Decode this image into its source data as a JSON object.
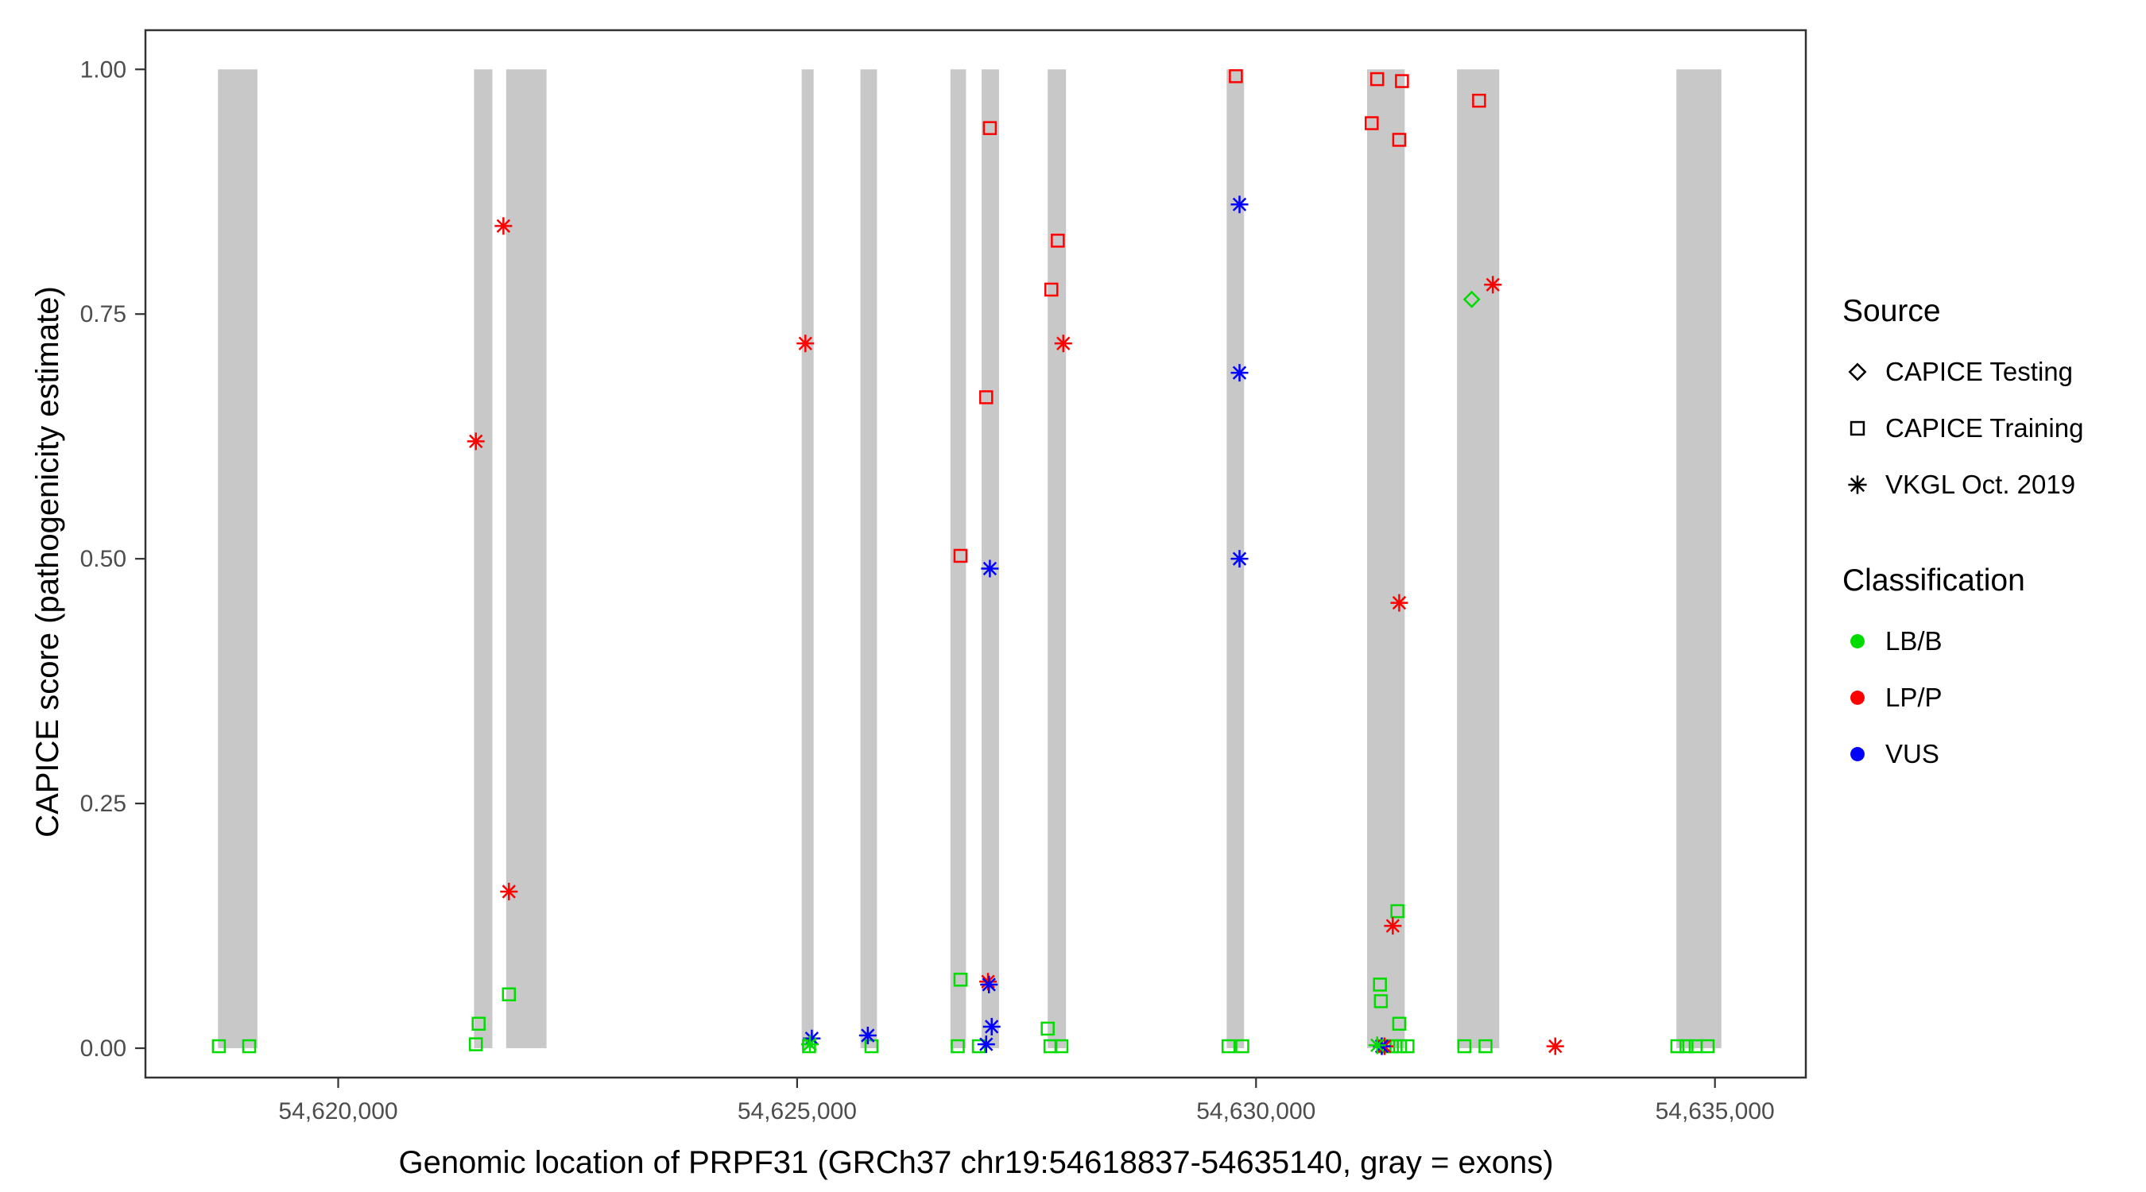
{
  "figure": {
    "background": "#FFFFFF"
  },
  "legend": {
    "source": {
      "title": "Source",
      "items": [
        {
          "label": "CAPICE Testing",
          "shape": "diamond"
        },
        {
          "label": "CAPICE Training",
          "shape": "square"
        },
        {
          "label": "VKGL Oct. 2019",
          "shape": "asterisk"
        }
      ]
    },
    "classification": {
      "title": "Classification",
      "items": [
        {
          "label": "LB/B",
          "color": "#00DB00"
        },
        {
          "label": "LP/P",
          "color": "#FF0000"
        },
        {
          "label": "VUS",
          "color": "#0000FF"
        }
      ]
    }
  },
  "chart_data": {
    "type": "scatter",
    "title": "",
    "xlabel": "Genomic location of PRPF31 (GRCh37 chr19:54618837-54635140, gray = exons)",
    "ylabel": "CAPICE score (pathogenicity estimate)",
    "x_domain": [
      54617900,
      54635990
    ],
    "y_domain": [
      -0.03,
      1.04
    ],
    "x_tick_values": [
      54620000,
      54625000,
      54630000,
      54635000
    ],
    "x_tick_labels": [
      "54,620,000",
      "54,625,000",
      "54,630,000",
      "54,635,000"
    ],
    "y_tick_values": [
      0,
      0.25,
      0.5,
      0.75,
      1
    ],
    "y_tick_labels": [
      "0.00",
      "0.25",
      "0.50",
      "0.75",
      "1.00"
    ],
    "grid": false,
    "legend_position": "right",
    "exon_color": "#C8C8C8",
    "exons": [
      [
        54618690,
        54619120
      ],
      [
        54621480,
        54621680
      ],
      [
        54621830,
        54622270
      ],
      [
        54625050,
        54625180
      ],
      [
        54625690,
        54625870
      ],
      [
        54626670,
        54626840
      ],
      [
        54627010,
        54627200
      ],
      [
        54627730,
        54627930
      ],
      [
        54629680,
        54629870
      ],
      [
        54631210,
        54631620
      ],
      [
        54632190,
        54632650
      ],
      [
        54634580,
        54635070
      ]
    ],
    "series": [
      {
        "name": "CAPICE Training LB/B",
        "source": "CAPICE Training",
        "classification": "LB/B",
        "shape": "square",
        "color": "#00DB00",
        "points": [
          [
            54618700,
            0.002
          ],
          [
            54619030,
            0.002
          ],
          [
            54621500,
            0.004
          ],
          [
            54621530,
            0.025
          ],
          [
            54621860,
            0.055
          ],
          [
            54625130,
            0.002
          ],
          [
            54625810,
            0.002
          ],
          [
            54626780,
            0.07
          ],
          [
            54626750,
            0.002
          ],
          [
            54626980,
            0.002
          ],
          [
            54627730,
            0.02
          ],
          [
            54627760,
            0.002
          ],
          [
            54627880,
            0.002
          ],
          [
            54629700,
            0.002
          ],
          [
            54629850,
            0.002
          ],
          [
            54631350,
            0.065
          ],
          [
            54631360,
            0.048
          ],
          [
            54631540,
            0.14
          ],
          [
            54631560,
            0.025
          ],
          [
            54631400,
            0.002
          ],
          [
            54631480,
            0.002
          ],
          [
            54631570,
            0.002
          ],
          [
            54631650,
            0.002
          ],
          [
            54632270,
            0.002
          ],
          [
            54632500,
            0.002
          ],
          [
            54634590,
            0.002
          ],
          [
            54634690,
            0.002
          ],
          [
            54634790,
            0.002
          ],
          [
            54634920,
            0.002
          ]
        ]
      },
      {
        "name": "CAPICE Training LP/P",
        "source": "CAPICE Training",
        "classification": "LP/P",
        "shape": "square",
        "color": "#FF0000",
        "points": [
          [
            54629780,
            0.993
          ],
          [
            54631320,
            0.99
          ],
          [
            54631590,
            0.988
          ],
          [
            54631260,
            0.945
          ],
          [
            54627100,
            0.94
          ],
          [
            54631560,
            0.928
          ],
          [
            54632430,
            0.968
          ],
          [
            54627840,
            0.825
          ],
          [
            54627770,
            0.775
          ],
          [
            54627060,
            0.665
          ],
          [
            54626780,
            0.503
          ]
        ]
      },
      {
        "name": "CAPICE Testing LB/B",
        "source": "CAPICE Testing",
        "classification": "LB/B",
        "shape": "diamond",
        "color": "#00DB00",
        "points": [
          [
            54632350,
            0.765
          ]
        ]
      },
      {
        "name": "VKGL Oct. 2019 LP/P",
        "source": "VKGL Oct. 2019",
        "classification": "LP/P",
        "shape": "asterisk",
        "color": "#FF0000",
        "points": [
          [
            54621800,
            0.84
          ],
          [
            54621500,
            0.62
          ],
          [
            54621860,
            0.16
          ],
          [
            54625090,
            0.72
          ],
          [
            54627900,
            0.72
          ],
          [
            54627080,
            0.068
          ],
          [
            54631560,
            0.455
          ],
          [
            54631490,
            0.125
          ],
          [
            54632580,
            0.78
          ],
          [
            54633260,
            0.002
          ],
          [
            54631400,
            0.002
          ]
        ]
      },
      {
        "name": "VKGL Oct. 2019 VUS",
        "source": "VKGL Oct. 2019",
        "classification": "VUS",
        "shape": "asterisk",
        "color": "#0000FF",
        "points": [
          [
            54629820,
            0.862
          ],
          [
            54629820,
            0.69
          ],
          [
            54629820,
            0.5
          ],
          [
            54627100,
            0.49
          ],
          [
            54627090,
            0.065
          ],
          [
            54627120,
            0.022
          ],
          [
            54625160,
            0.01
          ],
          [
            54625770,
            0.013
          ],
          [
            54627060,
            0.004
          ],
          [
            54631370,
            0.002
          ]
        ]
      },
      {
        "name": "VKGL Oct. 2019 LB/B",
        "source": "VKGL Oct. 2019",
        "classification": "LB/B",
        "shape": "asterisk",
        "color": "#00DB00",
        "points": [
          [
            54625140,
            0.004
          ],
          [
            54631320,
            0.003
          ]
        ]
      }
    ]
  }
}
